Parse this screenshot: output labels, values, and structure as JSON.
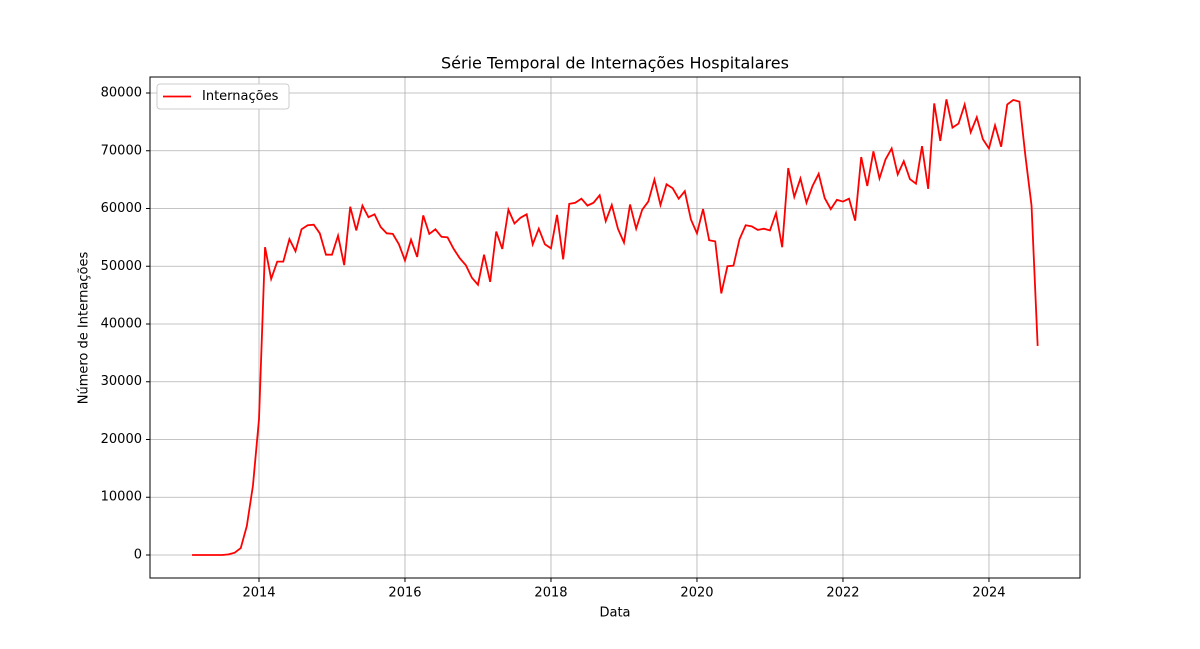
{
  "chart_data": {
    "type": "line",
    "title": "Série Temporal de Internações Hospitalares",
    "xlabel": "Data",
    "ylabel": "Número de Internações",
    "x": [
      2013.083,
      2013.167,
      2013.25,
      2013.333,
      2013.417,
      2013.5,
      2013.583,
      2013.667,
      2013.75,
      2013.833,
      2013.917,
      2014.0,
      2014.083,
      2014.167,
      2014.25,
      2014.333,
      2014.417,
      2014.5,
      2014.583,
      2014.667,
      2014.75,
      2014.833,
      2014.917,
      2015.0,
      2015.083,
      2015.167,
      2015.25,
      2015.333,
      2015.417,
      2015.5,
      2015.583,
      2015.667,
      2015.75,
      2015.833,
      2015.917,
      2016.0,
      2016.083,
      2016.167,
      2016.25,
      2016.333,
      2016.417,
      2016.5,
      2016.583,
      2016.667,
      2016.75,
      2016.833,
      2016.917,
      2017.0,
      2017.083,
      2017.167,
      2017.25,
      2017.333,
      2017.417,
      2017.5,
      2017.583,
      2017.667,
      2017.75,
      2017.833,
      2017.917,
      2018.0,
      2018.083,
      2018.167,
      2018.25,
      2018.333,
      2018.417,
      2018.5,
      2018.583,
      2018.667,
      2018.75,
      2018.833,
      2018.917,
      2019.0,
      2019.083,
      2019.167,
      2019.25,
      2019.333,
      2019.417,
      2019.5,
      2019.583,
      2019.667,
      2019.75,
      2019.833,
      2019.917,
      2020.0,
      2020.083,
      2020.167,
      2020.25,
      2020.333,
      2020.417,
      2020.5,
      2020.583,
      2020.667,
      2020.75,
      2020.833,
      2020.917,
      2021.0,
      2021.083,
      2021.167,
      2021.25,
      2021.333,
      2021.417,
      2021.5,
      2021.583,
      2021.667,
      2021.75,
      2021.833,
      2021.917,
      2022.0,
      2022.083,
      2022.167,
      2022.25,
      2022.333,
      2022.417,
      2022.5,
      2022.583,
      2022.667,
      2022.75,
      2022.833,
      2022.917,
      2023.0,
      2023.083,
      2023.167,
      2023.25,
      2023.333,
      2023.417,
      2023.5,
      2023.583,
      2023.667,
      2023.75,
      2023.833,
      2023.917,
      2024.0,
      2024.083,
      2024.167,
      2024.25,
      2024.333,
      2024.417,
      2024.5,
      2024.583,
      2024.667
    ],
    "series": [
      {
        "name": "Internações",
        "color": "#ff0000",
        "values": [
          0,
          0,
          0,
          0,
          0,
          0,
          100,
          400,
          1200,
          5000,
          12000,
          23500,
          53300,
          47800,
          50800,
          50800,
          54700,
          52600,
          56400,
          57100,
          57200,
          55700,
          52000,
          52000,
          55300,
          50200,
          60300,
          56200,
          60500,
          58500,
          59000,
          56800,
          55700,
          55600,
          53800,
          51000,
          54600,
          51600,
          58800,
          55600,
          56400,
          55100,
          55000,
          53000,
          51400,
          50200,
          48000,
          46800,
          52000,
          47300,
          56000,
          53000,
          59800,
          57400,
          58400,
          59000,
          53800,
          56500,
          53800,
          53100,
          58900,
          51200,
          60800,
          61000,
          61700,
          60500,
          61000,
          62300,
          57800,
          60600,
          56500,
          54100,
          60700,
          56500,
          59800,
          61200,
          65000,
          60600,
          64200,
          63500,
          61700,
          63000,
          58100,
          55700,
          59900,
          54500,
          54300,
          45300,
          50000,
          50100,
          54700,
          57100,
          56900,
          56300,
          56500,
          56200,
          59200,
          53300,
          67000,
          62000,
          65200,
          61000,
          63900,
          66000,
          61800,
          59900,
          61500,
          61200,
          61700,
          57900,
          68900,
          63900,
          69900,
          65200,
          68500,
          70400,
          65900,
          68200,
          65100,
          64300,
          70800,
          63400,
          78200,
          71700,
          78900,
          74000,
          74700,
          78000,
          73200,
          75800,
          72000,
          70400,
          74400,
          70700,
          78000,
          78800,
          78500,
          69000,
          60500,
          36200
        ]
      }
    ],
    "xlim": [
      2012.507,
      2025.247
    ],
    "ylim": [
      -3983,
      82771
    ],
    "xticks": [
      2014,
      2016,
      2018,
      2020,
      2022,
      2024
    ],
    "yticks": [
      0,
      10000,
      20000,
      30000,
      40000,
      50000,
      60000,
      70000,
      80000
    ],
    "grid": true,
    "legend": "upper left"
  }
}
